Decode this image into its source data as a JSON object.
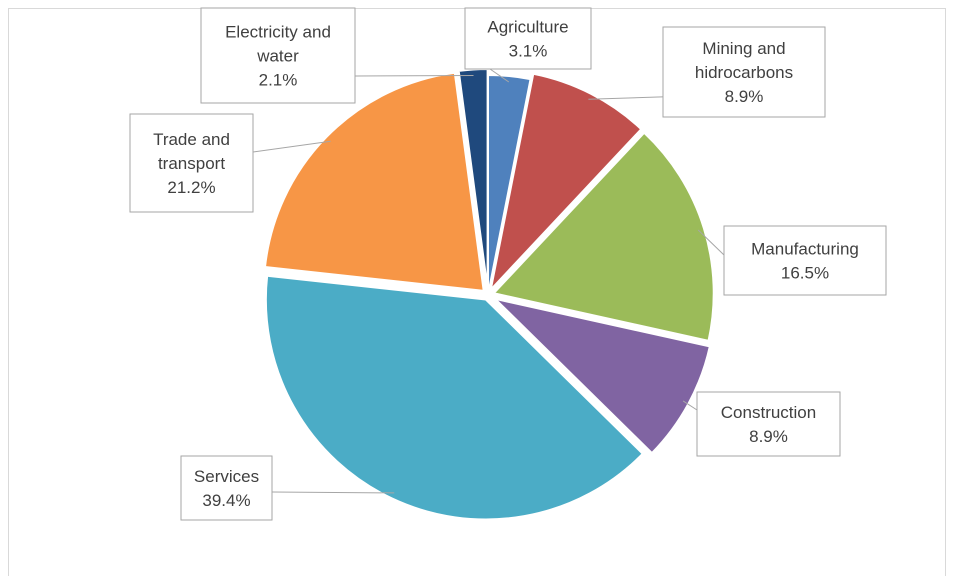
{
  "chart_data": {
    "type": "pie",
    "title": "",
    "slices": [
      {
        "lines": [
          "Agriculture"
        ],
        "value_label": "3.1%",
        "value": 3.1,
        "color": "#4f81bd"
      },
      {
        "lines": [
          "Mining and",
          "hidrocarbons"
        ],
        "value_label": "8.9%",
        "value": 8.9,
        "color": "#c0504d"
      },
      {
        "lines": [
          "Manufacturing"
        ],
        "value_label": "16.5%",
        "value": 16.5,
        "color": "#9bbb59"
      },
      {
        "lines": [
          "Construction"
        ],
        "value_label": "8.9%",
        "value": 8.9,
        "color": "#8064a2"
      },
      {
        "lines": [
          "Services"
        ],
        "value_label": "39.4%",
        "value": 39.4,
        "color": "#4bacc6"
      },
      {
        "lines": [
          "Trade and",
          "transport"
        ],
        "value_label": "21.2%",
        "value": 21.2,
        "color": "#f79646"
      },
      {
        "lines": [
          "Electricity and",
          "water"
        ],
        "value_label": "2.1%",
        "value": 2.1,
        "color": "#1f497d"
      }
    ],
    "start_angle_deg": 0,
    "direction": "clockwise",
    "slice_separation": "white gaps, exploded slices",
    "legend": "none",
    "labels": "data callouts with category name and percentage"
  }
}
